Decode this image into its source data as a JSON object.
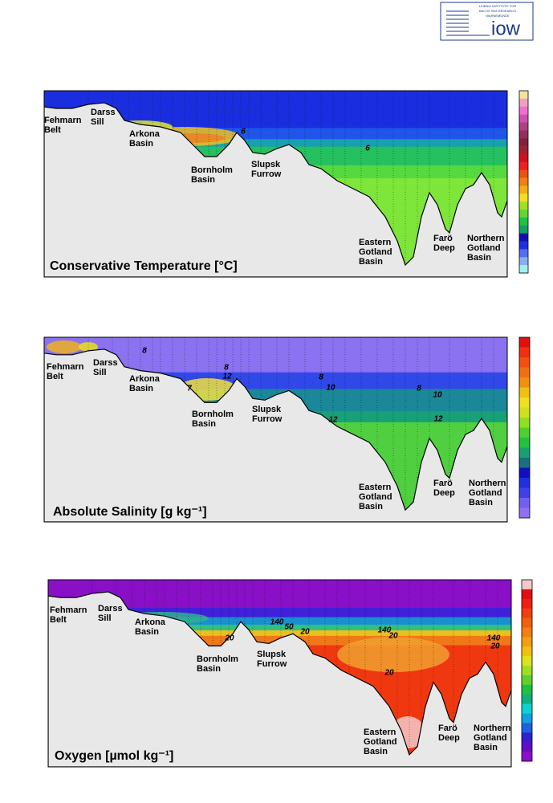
{
  "logo": {
    "lines": [
      "LEIBNIZ INSTITUTE FOR",
      "BALTIC SEA RESEARCH",
      "WARNEMÜNDE"
    ],
    "mark": "iow"
  },
  "panels": [
    {
      "title": "Conservative Temperature [°C]",
      "regions": [
        [
          "Fehmarn",
          "Belt"
        ],
        [
          "Darss",
          "Sill"
        ],
        [
          "Arkona",
          "Basin"
        ],
        [
          "Bornholm",
          "Basin"
        ],
        [
          "Slupsk",
          "Furrow"
        ],
        [
          "Eastern",
          "Gotland",
          "Basin"
        ],
        [
          "Farö",
          "Deep"
        ],
        [
          "Northern",
          "Gotland",
          "Basin"
        ]
      ],
      "contour_labels": [
        6,
        6
      ]
    },
    {
      "title": "Absolute Salinity [g kg⁻¹]",
      "regions": [
        [
          "Fehmarn",
          "Belt"
        ],
        [
          "Darss",
          "Sill"
        ],
        [
          "Arkona",
          "Basin"
        ],
        [
          "Bornholm",
          "Basin"
        ],
        [
          "Slupsk",
          "Furrow"
        ],
        [
          "Eastern",
          "Gotland",
          "Basin"
        ],
        [
          "Farö",
          "Deep"
        ],
        [
          "Northern",
          "Gotland",
          "Basin"
        ]
      ],
      "contour_labels": [
        8,
        8,
        12,
        7,
        8,
        10,
        12,
        8,
        10,
        12
      ]
    },
    {
      "title": "Oxygen [µmol kg⁻¹]",
      "regions": [
        [
          "Fehmarn",
          "Belt"
        ],
        [
          "Darss",
          "Sill"
        ],
        [
          "Arkona",
          "Basin"
        ],
        [
          "Bornholm",
          "Basin"
        ],
        [
          "Slupsk",
          "Furrow"
        ],
        [
          "Eastern",
          "Gotland",
          "Basin"
        ],
        [
          "Farö",
          "Deep"
        ],
        [
          "Northern",
          "Gotland",
          "Basin"
        ]
      ],
      "contour_labels": [
        140,
        50,
        20,
        20,
        140,
        20,
        20,
        140,
        20
      ]
    }
  ]
}
